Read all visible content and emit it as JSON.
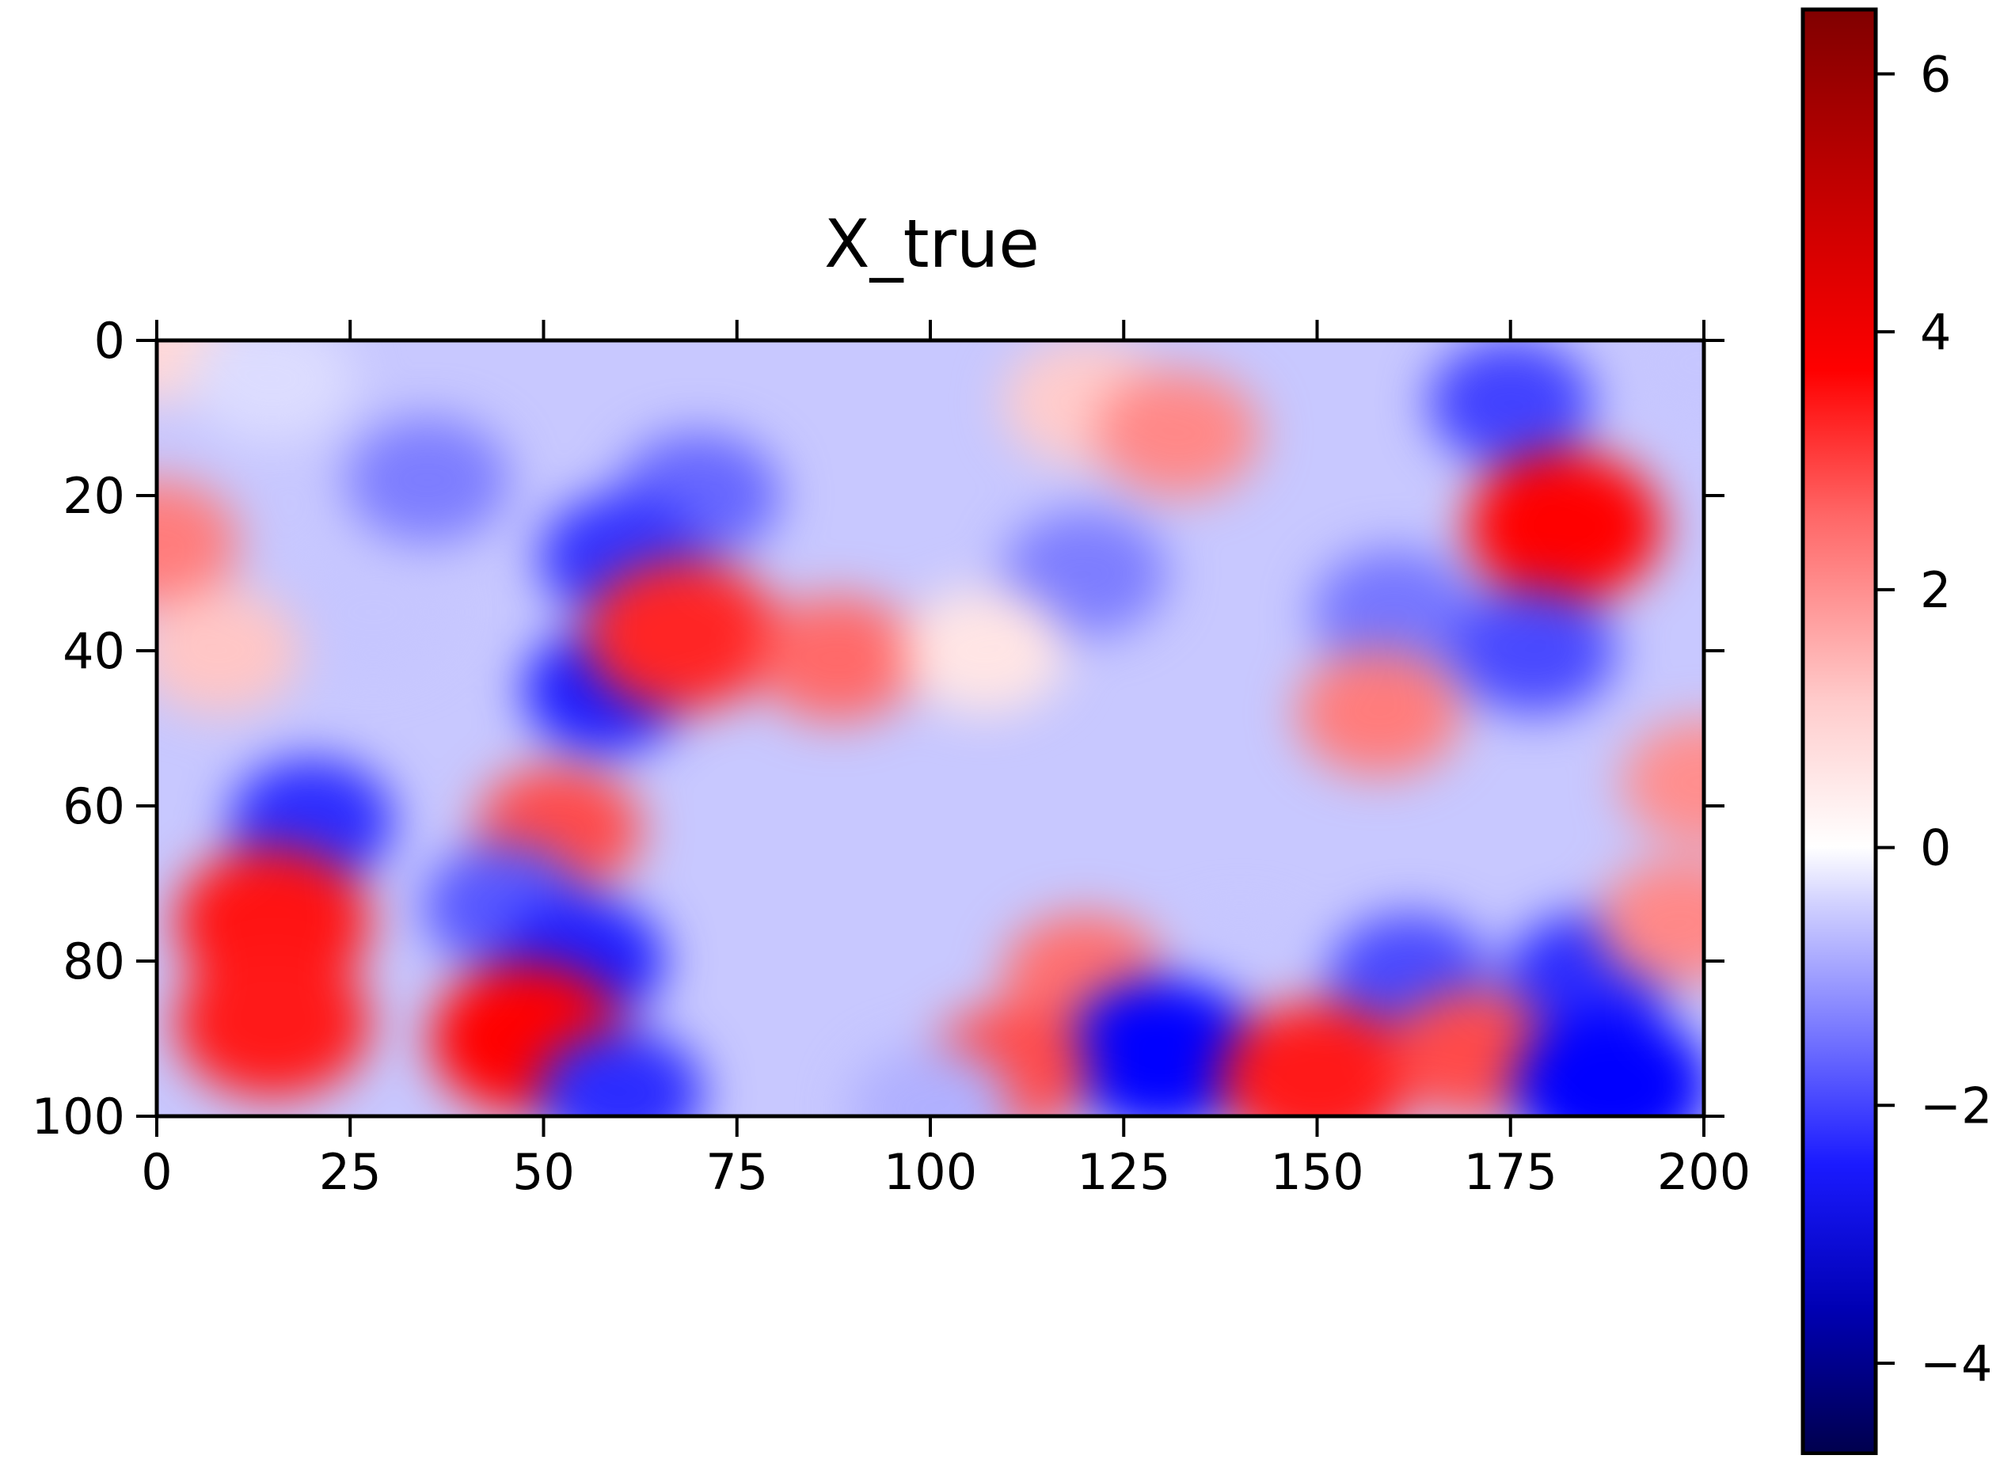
{
  "chart_data": {
    "type": "heatmap",
    "title": "X_true",
    "xlabel": "",
    "ylabel": "",
    "x_range": [
      0,
      200
    ],
    "y_range": [
      0,
      100
    ],
    "y_inverted": true,
    "x_ticks": [
      "0",
      "25",
      "50",
      "75",
      "100",
      "125",
      "150",
      "175",
      "200"
    ],
    "y_ticks": [
      "0",
      "20",
      "40",
      "60",
      "80",
      "100"
    ],
    "colormap": "seismic",
    "colorbar": {
      "range": [
        -4.7,
        6.5
      ],
      "ticks": [
        "6",
        "4",
        "2",
        "0",
        "−2",
        "−4"
      ],
      "tick_values": [
        6,
        4,
        2,
        0,
        -2,
        -4
      ]
    },
    "grid": false,
    "features": [
      {
        "x": 0,
        "y": 0,
        "v": 0.3
      },
      {
        "x": 15,
        "y": 5,
        "v": -0.2
      },
      {
        "x": 35,
        "y": 18,
        "v": -1.5
      },
      {
        "x": 70,
        "y": 20,
        "v": -1.8
      },
      {
        "x": 60,
        "y": 28,
        "v": -2.5
      },
      {
        "x": 120,
        "y": 8,
        "v": 0.5
      },
      {
        "x": 132,
        "y": 12,
        "v": 1.6
      },
      {
        "x": 175,
        "y": 8,
        "v": -2.3
      },
      {
        "x": 200,
        "y": 3,
        "v": -0.5
      },
      {
        "x": 182,
        "y": 24,
        "v": 4.4
      },
      {
        "x": 0,
        "y": 26,
        "v": 1.8
      },
      {
        "x": 120,
        "y": 30,
        "v": -1.5
      },
      {
        "x": 8,
        "y": 40,
        "v": 0.6
      },
      {
        "x": 28,
        "y": 35,
        "v": -0.5
      },
      {
        "x": 58,
        "y": 45,
        "v": -2.8
      },
      {
        "x": 68,
        "y": 38,
        "v": 3.2
      },
      {
        "x": 88,
        "y": 41,
        "v": 2.1
      },
      {
        "x": 107,
        "y": 40,
        "v": 0.1
      },
      {
        "x": 160,
        "y": 35,
        "v": -1.6
      },
      {
        "x": 178,
        "y": 40,
        "v": -2.2
      },
      {
        "x": 158,
        "y": 48,
        "v": 1.8
      },
      {
        "x": 20,
        "y": 62,
        "v": -2.6
      },
      {
        "x": 52,
        "y": 63,
        "v": 2.6
      },
      {
        "x": 200,
        "y": 57,
        "v": 1.5
      },
      {
        "x": 15,
        "y": 75,
        "v": 3.5
      },
      {
        "x": 45,
        "y": 73,
        "v": -2.0
      },
      {
        "x": 55,
        "y": 80,
        "v": -2.8
      },
      {
        "x": 120,
        "y": 82,
        "v": 2.0
      },
      {
        "x": 140,
        "y": 82,
        "v": -0.5
      },
      {
        "x": 162,
        "y": 82,
        "v": -2.2
      },
      {
        "x": 185,
        "y": 82,
        "v": -2.6
      },
      {
        "x": 197,
        "y": 75,
        "v": 1.6
      },
      {
        "x": 48,
        "y": 90,
        "v": 4.6
      },
      {
        "x": 15,
        "y": 88,
        "v": 3.4
      },
      {
        "x": 130,
        "y": 92,
        "v": -3.2
      },
      {
        "x": 110,
        "y": 94,
        "v": 2.6
      },
      {
        "x": 150,
        "y": 95,
        "v": 3.4
      },
      {
        "x": 170,
        "y": 92,
        "v": 2.6
      },
      {
        "x": 188,
        "y": 96,
        "v": -4.0
      },
      {
        "x": 60,
        "y": 97,
        "v": -2.6
      },
      {
        "x": 100,
        "y": 99,
        "v": -0.8
      }
    ]
  }
}
